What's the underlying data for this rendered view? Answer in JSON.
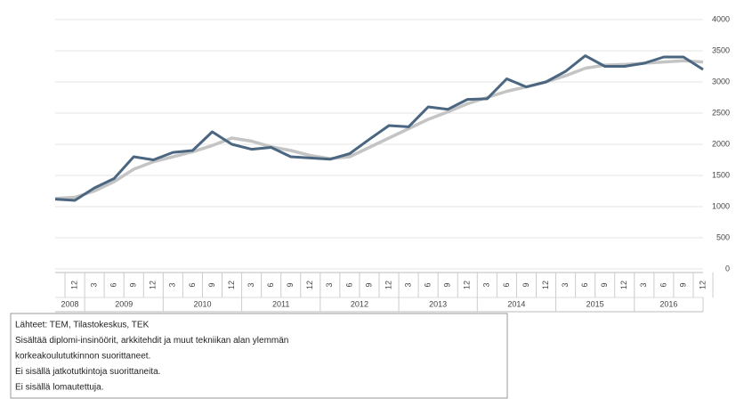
{
  "chart_data": {
    "type": "line",
    "categories": [
      null,
      "12",
      "3",
      "6",
      "9",
      "12",
      "3",
      "6",
      "9",
      "12",
      "3",
      "6",
      "9",
      "12",
      "3",
      "6",
      "9",
      "12",
      "3",
      "6",
      "9",
      "12",
      "3",
      "6",
      "9",
      "12",
      "3",
      "6",
      "9",
      "12",
      "3",
      "6",
      "9",
      "12"
    ],
    "years": [
      "2008",
      null,
      "2009",
      null,
      null,
      null,
      "2010",
      null,
      null,
      null,
      "2011",
      null,
      null,
      null,
      "2012",
      null,
      null,
      null,
      "2013",
      null,
      null,
      null,
      "2014",
      null,
      null,
      null,
      "2015",
      null,
      null,
      null,
      "2016",
      null,
      null,
      null
    ],
    "series": [
      {
        "color": "#4a6680",
        "values": [
          1120,
          1100,
          1300,
          1450,
          1800,
          1750,
          1870,
          1900,
          2200,
          2000,
          1920,
          1950,
          1800,
          1780,
          1760,
          1850,
          2080,
          2300,
          2280,
          2600,
          2560,
          2720,
          2730,
          3050,
          2920,
          3000,
          3170,
          3420,
          3250,
          3250,
          3300,
          3400,
          3400,
          3200
        ]
      },
      {
        "color": "#c4c4c4",
        "values": [
          1130,
          1150,
          1250,
          1400,
          1600,
          1720,
          1800,
          1880,
          1980,
          2100,
          2050,
          1960,
          1900,
          1820,
          1770,
          1800,
          1950,
          2100,
          2250,
          2400,
          2520,
          2650,
          2750,
          2850,
          2920,
          3000,
          3100,
          3220,
          3270,
          3280,
          3300,
          3320,
          3340,
          3320
        ]
      }
    ],
    "ylim": [
      0,
      4000
    ],
    "yticks": [
      0,
      500,
      1000,
      1500,
      2000,
      2500,
      3000,
      3500,
      4000
    ],
    "grid": true,
    "notes": [
      "Lähteet: TEM, Tilastokeskus, TEK",
      "Sisältää diplomi-insinöörit, arkkitehdit ja muut tekniikan alan ylemmän",
      "korkeakoulututkinnon suorittaneet.",
      "Ei sisällä jatkotutkintoja suorittaneita.",
      "Ei sisällä lomautettuja."
    ]
  }
}
